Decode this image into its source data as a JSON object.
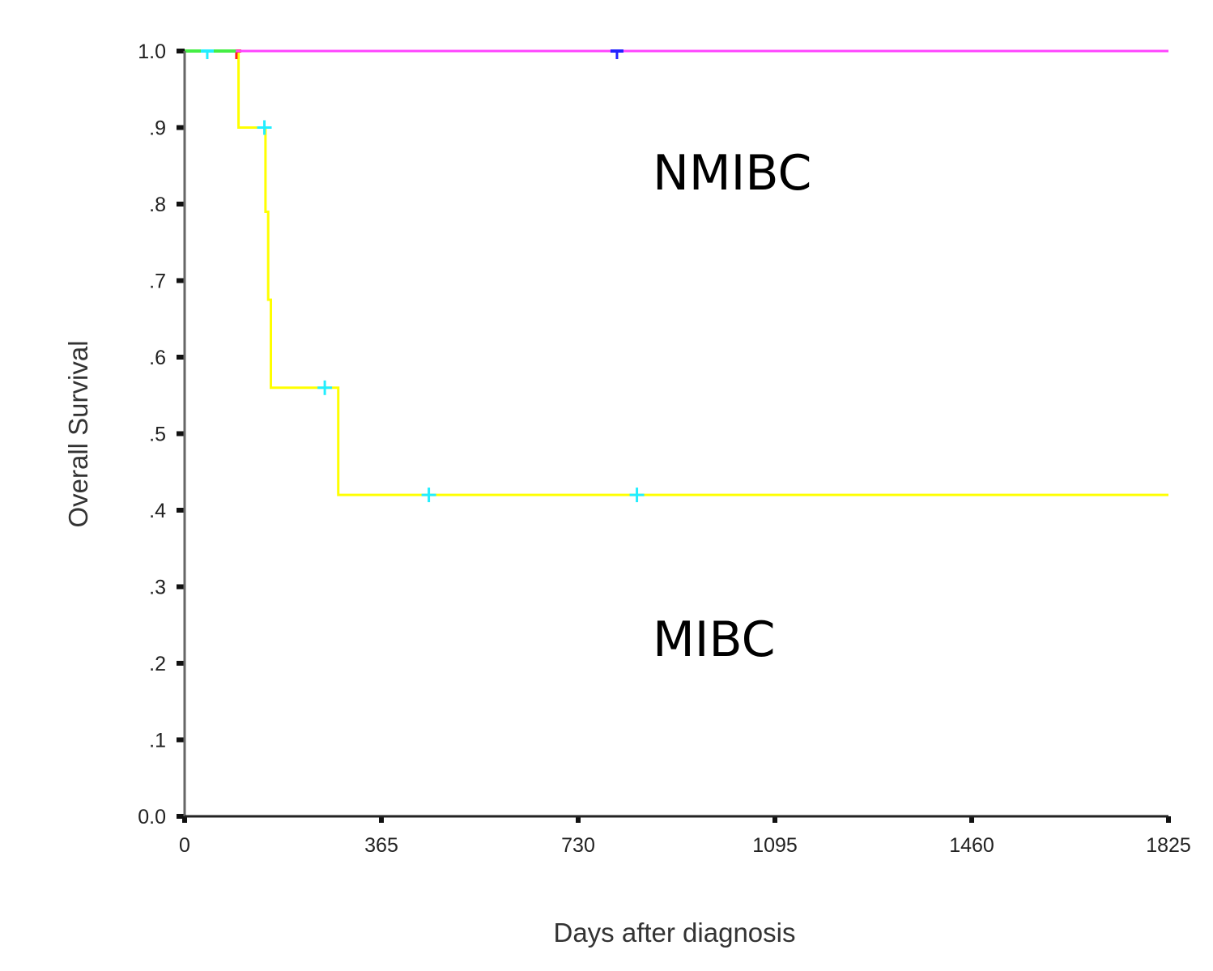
{
  "chart_data": {
    "type": "line",
    "subtype": "kaplan-meier-step",
    "title": "",
    "xlabel": "Days after diagnosis",
    "ylabel": "Overall Survival",
    "xlim": [
      0,
      1825
    ],
    "ylim": [
      0.0,
      1.0
    ],
    "x_ticks": [
      0,
      365,
      730,
      1095,
      1460,
      1825
    ],
    "x_tick_labels": [
      "0",
      "365",
      "730",
      "1095",
      "1460",
      "1825"
    ],
    "y_ticks": [
      0.0,
      0.1,
      0.2,
      0.3,
      0.4,
      0.5,
      0.6,
      0.7,
      0.8,
      0.9,
      1.0
    ],
    "y_tick_labels": [
      "0.0",
      ".1",
      ".2",
      ".3",
      ".4",
      ".5",
      ".6",
      ".7",
      ".8",
      ".9",
      "1.0"
    ],
    "grid": false,
    "legend": null,
    "annotations": [
      {
        "text": "NMIBC",
        "x": 1030,
        "y": 0.9
      },
      {
        "text": "MIBC",
        "x": 1000,
        "y": 0.24
      }
    ],
    "series": [
      {
        "name": "NMIBC",
        "color": "#ff44ff",
        "start_color": "#44ee44",
        "steps": [
          [
            0,
            1.0
          ],
          [
            1825,
            1.0
          ]
        ],
        "censored": [
          {
            "x": 42,
            "y": 1.0,
            "color": "#22eeff"
          },
          {
            "x": 802,
            "y": 1.0,
            "color": "#2222ff"
          }
        ]
      },
      {
        "name": "MIBC",
        "color": "#ffff00",
        "steps": [
          [
            0,
            1.0
          ],
          [
            100,
            0.9
          ],
          [
            150,
            0.79
          ],
          [
            155,
            0.675
          ],
          [
            160,
            0.56
          ],
          [
            285,
            0.42
          ],
          [
            1825,
            0.42
          ]
        ],
        "censored": [
          {
            "x": 148,
            "y": 0.9,
            "color": "#22eeff"
          },
          {
            "x": 260,
            "y": 0.56,
            "color": "#22eeff"
          },
          {
            "x": 453,
            "y": 0.42,
            "color": "#22eeff"
          },
          {
            "x": 839,
            "y": 0.42,
            "color": "#22eeff"
          }
        ],
        "event_mark": {
          "x": 96,
          "y": 1.0,
          "color": "#ff2222"
        }
      }
    ]
  },
  "labels": {
    "xlabel": "Days after diagnosis",
    "ylabel": "Overall Survival",
    "annot_nmibc": "NMIBC",
    "annot_mibc": "MIBC"
  }
}
